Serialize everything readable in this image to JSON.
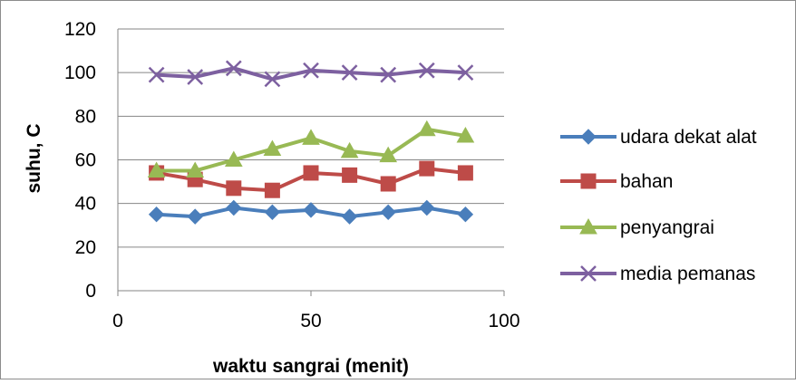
{
  "chart_data": {
    "type": "line",
    "title": "",
    "xlabel": "waktu sangrai (menit)",
    "ylabel": "suhu, C",
    "xlim": [
      0,
      100
    ],
    "ylim": [
      0,
      120
    ],
    "x_ticks": [
      "0",
      "50",
      "100"
    ],
    "y_ticks": [
      "0",
      "20",
      "40",
      "60",
      "80",
      "100",
      "120"
    ],
    "x": [
      10,
      20,
      30,
      40,
      50,
      60,
      70,
      80,
      90
    ],
    "grid": "horizontal",
    "legend_position": "right",
    "series": [
      {
        "name": "udara dekat alat",
        "values": [
          35,
          34,
          38,
          36,
          37,
          34,
          36,
          38,
          35
        ],
        "color": "#4a7ebb",
        "marker": "diamond"
      },
      {
        "name": "bahan",
        "values": [
          54,
          51,
          47,
          46,
          54,
          53,
          49,
          56,
          54
        ],
        "color": "#be4b48",
        "marker": "square"
      },
      {
        "name": "penyangrai",
        "values": [
          55,
          55,
          60,
          65,
          70,
          64,
          62,
          74,
          71
        ],
        "color": "#98b954",
        "marker": "triangle"
      },
      {
        "name": "media pemanas",
        "values": [
          99,
          98,
          102,
          97,
          101,
          100,
          99,
          101,
          100
        ],
        "color": "#7d60a0",
        "marker": "x"
      }
    ]
  }
}
